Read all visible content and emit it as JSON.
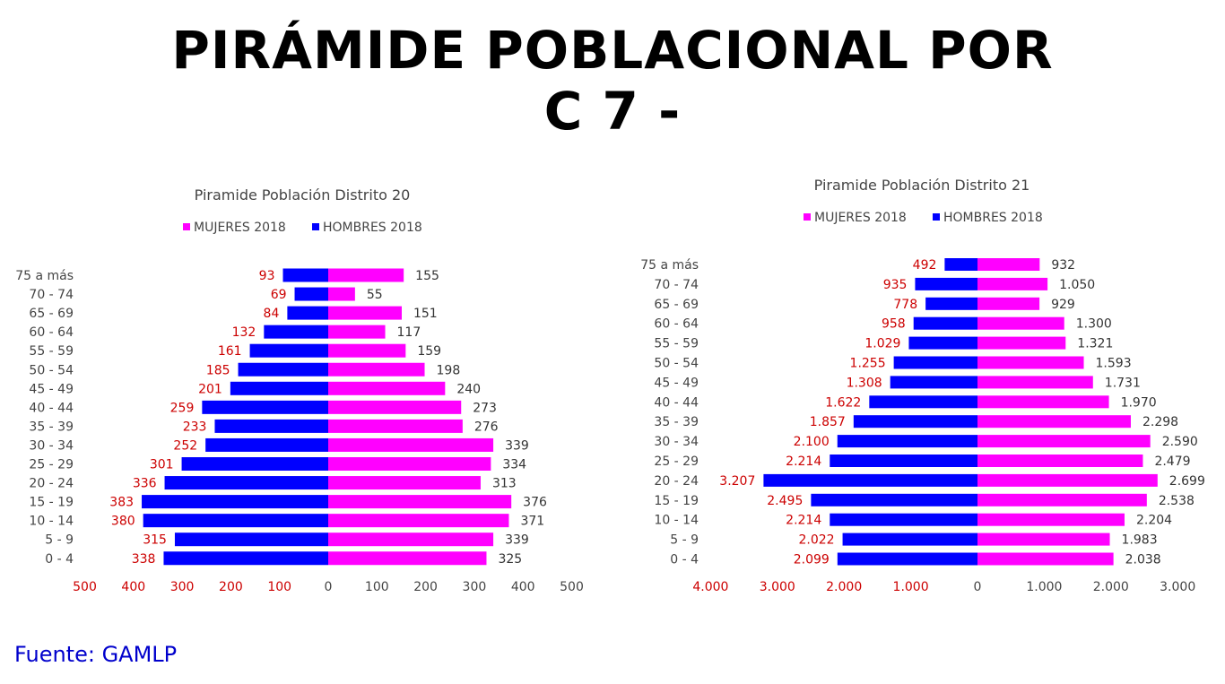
{
  "page": {
    "title_line1": "PIRÁMIDE POBLACIONAL POR",
    "title_line2": "C 7 -",
    "source": "Fuente: GAMLP"
  },
  "colors": {
    "mujeres": "#ff00ff",
    "hombres": "#0000ff",
    "hombres_label": "#cc0000",
    "mujeres_label": "#333333",
    "axis_text": "#444444"
  },
  "chart_data": [
    {
      "type": "bar",
      "orientation": "horizontal-pyramid",
      "title": "Piramide Población Distrito 20",
      "legend_position": "top-center",
      "categories": [
        "75 a más",
        "70 - 74",
        "65 - 69",
        "60 - 64",
        "55 - 59",
        "50 - 54",
        "45 - 49",
        "40 - 44",
        "35 - 39",
        "30 - 34",
        "25 - 29",
        "20 - 24",
        "15 - 19",
        "10 - 14",
        "5 - 9",
        "0 - 4"
      ],
      "series": [
        {
          "name": "MUJERES 2018",
          "values": [
            155,
            55,
            151,
            117,
            159,
            198,
            240,
            273,
            276,
            339,
            334,
            313,
            376,
            371,
            339,
            325
          ],
          "labels": [
            "155",
            "55",
            "151",
            "117",
            "159",
            "198",
            "240",
            "273",
            "276",
            "339",
            "334",
            "313",
            "376",
            "371",
            "339",
            "325"
          ]
        },
        {
          "name": "HOMBRES 2018",
          "values": [
            93,
            69,
            84,
            132,
            161,
            185,
            201,
            259,
            233,
            252,
            301,
            336,
            383,
            380,
            315,
            338
          ],
          "labels": [
            "93",
            "69",
            "84",
            "132",
            "161",
            "185",
            "201",
            "259",
            "233",
            "252",
            "301",
            "336",
            "383",
            "380",
            "315",
            "338"
          ]
        }
      ],
      "xlim": [
        -500,
        500
      ],
      "x_ticks_left": [
        500,
        400,
        300,
        200,
        100
      ],
      "x_ticks_left_labels": [
        "500",
        "400",
        "300",
        "200",
        "100"
      ],
      "x_ticks_right": [
        0,
        100,
        200,
        300,
        400,
        500
      ],
      "x_ticks_right_labels": [
        "0",
        "100",
        "200",
        "300",
        "400",
        "500"
      ],
      "grid": false
    },
    {
      "type": "bar",
      "orientation": "horizontal-pyramid",
      "title": "Piramide Población Distrito 21",
      "legend_position": "top-center",
      "categories": [
        "75 a más",
        "70 - 74",
        "65 - 69",
        "60 - 64",
        "55 - 59",
        "50 - 54",
        "45 - 49",
        "40 - 44",
        "35 - 39",
        "30 - 34",
        "25 - 29",
        "20 - 24",
        "15 - 19",
        "10 - 14",
        "5 - 9",
        "0 - 4"
      ],
      "series": [
        {
          "name": "MUJERES 2018",
          "values": [
            932,
            1050,
            929,
            1300,
            1321,
            1593,
            1731,
            1970,
            2298,
            2590,
            2479,
            2699,
            2538,
            2204,
            1983,
            2038
          ],
          "labels": [
            "932",
            "1.050",
            "929",
            "1.300",
            "1.321",
            "1.593",
            "1.731",
            "1.970",
            "2.298",
            "2.590",
            "2.479",
            "2.699",
            "2.538",
            "2.204",
            "1.983",
            "2.038"
          ]
        },
        {
          "name": "HOMBRES 2018",
          "values": [
            492,
            935,
            778,
            958,
            1029,
            1255,
            1308,
            1622,
            1857,
            2100,
            2214,
            3207,
            2495,
            2214,
            2022,
            2099
          ],
          "labels": [
            "492",
            "935",
            "778",
            "958",
            "1.029",
            "1.255",
            "1.308",
            "1.622",
            "1.857",
            "2.100",
            "2.214",
            "3.207",
            "2.495",
            "2.214",
            "2.022",
            "2.099"
          ]
        }
      ],
      "xlim": [
        -4000,
        3000
      ],
      "x_ticks_left": [
        4000,
        3000,
        2000,
        1000
      ],
      "x_ticks_left_labels": [
        "4.000",
        "3.000",
        "2.000",
        "1.000"
      ],
      "x_ticks_right": [
        0,
        1000,
        2000,
        3000
      ],
      "x_ticks_right_labels": [
        "0",
        "1.000",
        "2.000",
        "3.000"
      ],
      "grid": false
    }
  ]
}
